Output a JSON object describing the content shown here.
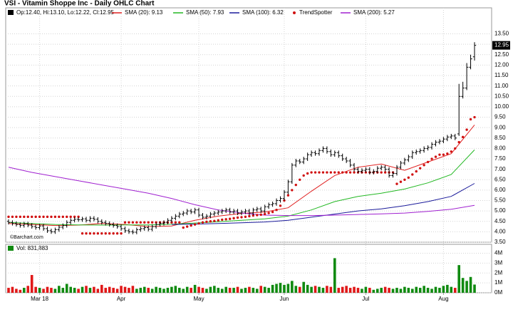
{
  "chart_data": {
    "type": "ohlc",
    "title": "VSI - Vitamin Shoppe Inc - Daily OHLC Chart",
    "subtitle": "Op:12.40, Hi:13.10, Lo:12.22, Cl:12.95",
    "credit": "©Barchart.com",
    "bar_color": "#000000",
    "categories": [
      null,
      null,
      null,
      null,
      null,
      null,
      null,
      null,
      "Mar 18",
      null,
      null,
      null,
      null,
      null,
      null,
      null,
      null,
      null,
      null,
      null,
      null,
      null,
      null,
      null,
      null,
      null,
      null,
      null,
      null,
      "Apr",
      null,
      null,
      null,
      null,
      null,
      null,
      null,
      null,
      null,
      null,
      null,
      null,
      null,
      null,
      null,
      null,
      null,
      null,
      null,
      "May",
      null,
      null,
      null,
      null,
      null,
      null,
      null,
      null,
      null,
      null,
      null,
      null,
      null,
      null,
      null,
      null,
      null,
      null,
      null,
      null,
      null,
      "Jun",
      null,
      null,
      null,
      null,
      null,
      null,
      null,
      null,
      null,
      null,
      null,
      null,
      null,
      null,
      null,
      null,
      null,
      null,
      null,
      null,
      "Jul",
      null,
      null,
      null,
      null,
      null,
      null,
      null,
      null,
      null,
      null,
      null,
      null,
      null,
      null,
      null,
      null,
      null,
      null,
      null,
      "Aug",
      null,
      null,
      null,
      null,
      null,
      null,
      null,
      null
    ],
    "open": [
      4.5,
      4.45,
      4.4,
      4.35,
      4.3,
      4.38,
      4.32,
      4.25,
      4.2,
      4.28,
      4.15,
      4.05,
      4.0,
      4.1,
      4.22,
      4.3,
      4.45,
      4.55,
      4.6,
      4.58,
      4.62,
      4.55,
      4.65,
      4.6,
      4.5,
      4.45,
      4.4,
      4.35,
      4.3,
      4.25,
      4.15,
      4.05,
      4.0,
      3.98,
      4.1,
      4.15,
      4.2,
      4.12,
      4.25,
      4.35,
      4.4,
      4.45,
      4.55,
      4.65,
      4.75,
      4.85,
      4.9,
      5.0,
      4.95,
      5.05,
      4.8,
      4.7,
      4.75,
      4.85,
      4.9,
      4.95,
      5.0,
      5.05,
      4.95,
      5.0,
      4.9,
      4.95,
      5.0,
      4.9,
      5.05,
      5.1,
      5.0,
      5.2,
      5.3,
      5.35,
      5.5,
      5.6,
      5.9,
      6.4,
      7.2,
      7.4,
      7.35,
      7.5,
      7.7,
      7.8,
      7.75,
      7.9,
      8.0,
      7.85,
      7.7,
      7.8,
      7.65,
      7.5,
      7.4,
      7.2,
      7.0,
      6.9,
      6.95,
      7.0,
      6.85,
      6.9,
      7.05,
      7.1,
      7.0,
      6.7,
      6.8,
      7.1,
      7.3,
      7.45,
      7.6,
      7.8,
      7.85,
      7.9,
      8.0,
      8.05,
      8.2,
      8.3,
      8.35,
      8.45,
      8.55,
      8.6,
      8.7,
      10.5,
      10.9,
      11.9,
      12.4
    ],
    "high": [
      4.6,
      4.55,
      4.5,
      4.45,
      4.48,
      4.48,
      4.42,
      4.35,
      4.38,
      4.38,
      4.25,
      4.15,
      4.2,
      4.32,
      4.4,
      4.55,
      4.65,
      4.7,
      4.7,
      4.72,
      4.72,
      4.75,
      4.75,
      4.7,
      4.6,
      4.55,
      4.5,
      4.45,
      4.4,
      4.35,
      4.25,
      4.15,
      4.1,
      4.2,
      4.25,
      4.3,
      4.3,
      4.35,
      4.45,
      4.5,
      4.55,
      4.65,
      4.75,
      4.85,
      4.95,
      5.0,
      5.1,
      5.1,
      5.15,
      5.15,
      4.9,
      4.85,
      4.95,
      5.0,
      5.05,
      5.1,
      5.15,
      5.15,
      5.1,
      5.1,
      5.05,
      5.1,
      5.1,
      5.15,
      5.2,
      5.2,
      5.3,
      5.4,
      5.45,
      5.6,
      5.7,
      6.0,
      6.5,
      7.3,
      7.5,
      7.5,
      7.6,
      7.8,
      7.9,
      7.9,
      8.0,
      8.1,
      8.1,
      7.95,
      7.9,
      7.9,
      7.75,
      7.6,
      7.5,
      7.3,
      7.1,
      7.05,
      7.1,
      7.1,
      7.0,
      7.15,
      7.2,
      7.2,
      7.1,
      6.9,
      7.2,
      7.4,
      7.55,
      7.7,
      7.9,
      7.95,
      8.0,
      8.1,
      8.15,
      8.3,
      8.4,
      8.45,
      8.55,
      8.65,
      8.7,
      8.7,
      11.1,
      11.2,
      12.1,
      12.5,
      13.1
    ],
    "low": [
      4.35,
      4.3,
      4.25,
      4.2,
      4.2,
      4.22,
      4.15,
      4.1,
      4.1,
      4.05,
      3.95,
      3.9,
      3.9,
      4.0,
      4.12,
      4.2,
      4.35,
      4.45,
      4.48,
      4.48,
      4.45,
      4.45,
      4.5,
      4.4,
      4.35,
      4.3,
      4.25,
      4.2,
      4.15,
      4.05,
      3.95,
      3.9,
      3.88,
      3.88,
      4.0,
      4.05,
      4.02,
      4.02,
      4.15,
      4.25,
      4.3,
      4.35,
      4.45,
      4.55,
      4.65,
      4.75,
      4.8,
      4.85,
      4.85,
      4.7,
      4.6,
      4.6,
      4.65,
      4.75,
      4.8,
      4.85,
      4.9,
      4.85,
      4.85,
      4.8,
      4.8,
      4.85,
      4.8,
      4.8,
      4.95,
      4.9,
      4.9,
      5.1,
      5.2,
      5.25,
      5.4,
      5.5,
      5.8,
      6.3,
      7.1,
      7.25,
      7.25,
      7.4,
      7.6,
      7.65,
      7.65,
      7.8,
      7.75,
      7.6,
      7.6,
      7.55,
      7.4,
      7.3,
      7.1,
      6.9,
      6.8,
      6.8,
      6.85,
      6.75,
      6.75,
      6.8,
      6.95,
      6.9,
      6.6,
      6.6,
      6.7,
      7.0,
      7.2,
      7.35,
      7.5,
      7.7,
      7.75,
      7.8,
      7.9,
      7.95,
      8.1,
      8.2,
      8.25,
      8.35,
      8.45,
      8.4,
      8.6,
      10.4,
      10.8,
      11.8,
      12.22
    ],
    "close": [
      4.45,
      4.4,
      4.35,
      4.3,
      4.38,
      4.32,
      4.25,
      4.2,
      4.28,
      4.15,
      4.05,
      4.0,
      4.1,
      4.22,
      4.3,
      4.45,
      4.55,
      4.6,
      4.58,
      4.62,
      4.55,
      4.65,
      4.6,
      4.5,
      4.45,
      4.4,
      4.35,
      4.3,
      4.25,
      4.15,
      4.05,
      4.0,
      3.98,
      4.1,
      4.15,
      4.2,
      4.12,
      4.25,
      4.35,
      4.4,
      4.45,
      4.55,
      4.65,
      4.75,
      4.85,
      4.9,
      5.0,
      4.95,
      5.05,
      4.8,
      4.7,
      4.75,
      4.85,
      4.9,
      4.95,
      5.0,
      5.05,
      4.95,
      5.0,
      4.9,
      4.95,
      5.0,
      4.9,
      5.05,
      5.1,
      5.0,
      5.2,
      5.3,
      5.35,
      5.5,
      5.6,
      5.9,
      6.4,
      7.2,
      7.4,
      7.35,
      7.5,
      7.7,
      7.8,
      7.75,
      7.9,
      8.0,
      7.85,
      7.7,
      7.8,
      7.65,
      7.5,
      7.4,
      7.2,
      7.0,
      6.9,
      6.95,
      7.0,
      6.85,
      6.9,
      7.05,
      7.1,
      7.0,
      6.7,
      6.8,
      7.1,
      7.3,
      7.45,
      7.6,
      7.8,
      7.85,
      7.9,
      8.0,
      8.05,
      8.2,
      8.3,
      8.35,
      8.45,
      8.55,
      8.6,
      8.5,
      10.5,
      10.9,
      11.9,
      12.3,
      12.95
    ],
    "last_value_label": "12.95",
    "overlay_x": [
      0,
      6,
      12,
      18,
      24,
      30,
      36,
      42,
      48,
      54,
      60,
      66,
      72,
      78,
      84,
      90,
      96,
      102,
      108,
      114,
      120
    ],
    "overlays": [
      {
        "name": "SMA (20): 9.13",
        "color": "#e02020",
        "values": [
          4.4,
          4.35,
          4.3,
          4.32,
          4.4,
          4.35,
          4.25,
          4.28,
          4.55,
          4.75,
          4.88,
          4.95,
          5.15,
          5.95,
          6.7,
          7.1,
          7.25,
          6.95,
          7.35,
          7.75,
          9.13
        ]
      },
      {
        "name": "SMA (50): 7.93",
        "color": "#22b822",
        "values": [
          4.45,
          4.4,
          4.35,
          4.33,
          4.32,
          4.33,
          4.33,
          4.36,
          4.42,
          4.48,
          4.55,
          4.62,
          4.75,
          5.05,
          5.45,
          5.7,
          5.85,
          6.05,
          6.35,
          6.75,
          7.93
        ]
      },
      {
        "name": "SMA (100): 6.32",
        "color": "#1a1a9a",
        "values": [
          null,
          null,
          null,
          null,
          null,
          null,
          null,
          4.35,
          4.37,
          4.4,
          4.43,
          4.47,
          4.55,
          4.7,
          4.85,
          5.0,
          5.1,
          5.25,
          5.45,
          5.7,
          6.32
        ]
      },
      {
        "name": "SMA (200): 5.27",
        "color": "#a020d0",
        "values": [
          7.1,
          6.85,
          6.65,
          6.45,
          6.25,
          6.05,
          5.85,
          5.6,
          5.3,
          5.05,
          4.9,
          4.8,
          4.78,
          4.78,
          4.8,
          4.83,
          4.86,
          4.9,
          4.98,
          5.08,
          5.27
        ]
      }
    ],
    "trendspotter": {
      "name": "TrendSpotter",
      "color": "#d01010",
      "values": [
        4.72,
        4.72,
        4.72,
        4.72,
        4.72,
        4.72,
        4.72,
        4.72,
        4.72,
        4.72,
        4.72,
        4.72,
        4.72,
        4.72,
        4.72,
        4.72,
        4.72,
        4.72,
        4.72,
        3.92,
        3.92,
        3.92,
        3.92,
        3.92,
        3.92,
        3.92,
        3.92,
        3.92,
        3.92,
        3.92,
        4.45,
        4.45,
        4.45,
        4.45,
        4.45,
        4.45,
        4.45,
        4.45,
        4.45,
        4.45,
        4.45,
        4.45,
        4.45,
        4.45,
        4.45,
        4.2,
        4.25,
        4.3,
        4.35,
        4.4,
        4.45,
        4.48,
        4.5,
        4.52,
        4.55,
        4.58,
        4.6,
        4.62,
        4.65,
        4.68,
        4.7,
        4.72,
        4.75,
        4.78,
        4.8,
        4.82,
        4.85,
        4.9,
        4.95,
        5.05,
        5.25,
        5.5,
        5.75,
        6.0,
        6.25,
        6.5,
        6.7,
        6.8,
        6.85,
        6.85,
        6.85,
        6.85,
        6.85,
        6.85,
        6.85,
        6.85,
        6.85,
        6.85,
        6.85,
        6.85,
        6.85,
        6.85,
        6.85,
        6.85,
        6.85,
        6.85,
        6.85,
        6.85,
        6.85,
        6.85,
        6.3,
        6.4,
        6.5,
        6.6,
        6.75,
        6.9,
        7.05,
        7.2,
        7.35,
        7.5,
        7.6,
        7.7,
        7.7,
        7.75,
        7.85,
        8.0,
        8.3,
        8.55,
        8.9,
        9.4,
        9.5
      ]
    },
    "ylim": [
      3.5,
      14.75
    ],
    "yticks": [
      {
        "value": 3.5,
        "label": "3.50"
      },
      {
        "value": 4,
        "label": "4.00"
      },
      {
        "value": 4.5,
        "label": "4.50"
      },
      {
        "value": 5,
        "label": "5.00"
      },
      {
        "value": 5.5,
        "label": "5.50"
      },
      {
        "value": 6,
        "label": "6.00"
      },
      {
        "value": 6.5,
        "label": "6.50"
      },
      {
        "value": 7,
        "label": "7.00"
      },
      {
        "value": 7.5,
        "label": "7.50"
      },
      {
        "value": 8,
        "label": "8.00"
      },
      {
        "value": 8.5,
        "label": "8.50"
      },
      {
        "value": 9,
        "label": "9.00"
      },
      {
        "value": 9.5,
        "label": "9.50"
      },
      {
        "value": 10,
        "label": "10.00"
      },
      {
        "value": 10.5,
        "label": "10.50"
      },
      {
        "value": 11,
        "label": "11.00"
      },
      {
        "value": 11.5,
        "label": "11.50"
      },
      {
        "value": 12,
        "label": "12.00"
      },
      {
        "value": 12.5,
        "label": "12.50"
      },
      {
        "value": 13,
        "label": "13.00"
      },
      {
        "value": 13.5,
        "label": "13.50"
      }
    ],
    "grid": true,
    "volume": {
      "label": "Vol: 831,883",
      "up_color": "#108a10",
      "down_color": "#e01818",
      "ylim": [
        0,
        4.9
      ],
      "yticks": [
        {
          "value": 0,
          "label": "0M"
        },
        {
          "value": 1,
          "label": "1M"
        },
        {
          "value": 2,
          "label": "2M"
        },
        {
          "value": 3,
          "label": "3M"
        },
        {
          "value": 4,
          "label": "4M"
        }
      ],
      "values": [
        0.5,
        0.6,
        0.4,
        0.3,
        0.5,
        0.7,
        1.8,
        0.6,
        0.5,
        0.4,
        0.6,
        0.5,
        0.4,
        0.7,
        0.5,
        0.9,
        0.6,
        0.5,
        0.4,
        0.6,
        0.7,
        0.5,
        0.6,
        0.4,
        0.8,
        0.5,
        0.6,
        0.5,
        0.4,
        0.7,
        0.6,
        0.5,
        0.7,
        0.4,
        0.5,
        0.6,
        0.5,
        0.4,
        0.6,
        0.5,
        0.4,
        0.5,
        0.6,
        0.7,
        0.5,
        0.4,
        0.6,
        0.5,
        0.8,
        0.6,
        0.5,
        0.4,
        0.6,
        0.7,
        0.5,
        0.4,
        0.6,
        0.5,
        0.5,
        0.6,
        0.4,
        0.5,
        0.6,
        0.5,
        0.4,
        0.7,
        0.6,
        0.5,
        0.8,
        0.9,
        1.0,
        0.8,
        0.9,
        1.2,
        0.7,
        0.6,
        1.1,
        0.8,
        0.6,
        0.7,
        0.6,
        0.5,
        0.7,
        0.6,
        3.5,
        0.5,
        0.6,
        0.7,
        0.5,
        0.6,
        0.5,
        0.4,
        0.6,
        0.5,
        0.3,
        0.4,
        0.5,
        0.6,
        0.5,
        0.4,
        0.5,
        0.4,
        0.6,
        0.5,
        0.4,
        0.6,
        0.5,
        0.7,
        0.5,
        0.4,
        0.6,
        0.5,
        0.7,
        0.8,
        0.6,
        0.5,
        2.8,
        1.5,
        1.2,
        1.6,
        0.831883
      ]
    }
  }
}
